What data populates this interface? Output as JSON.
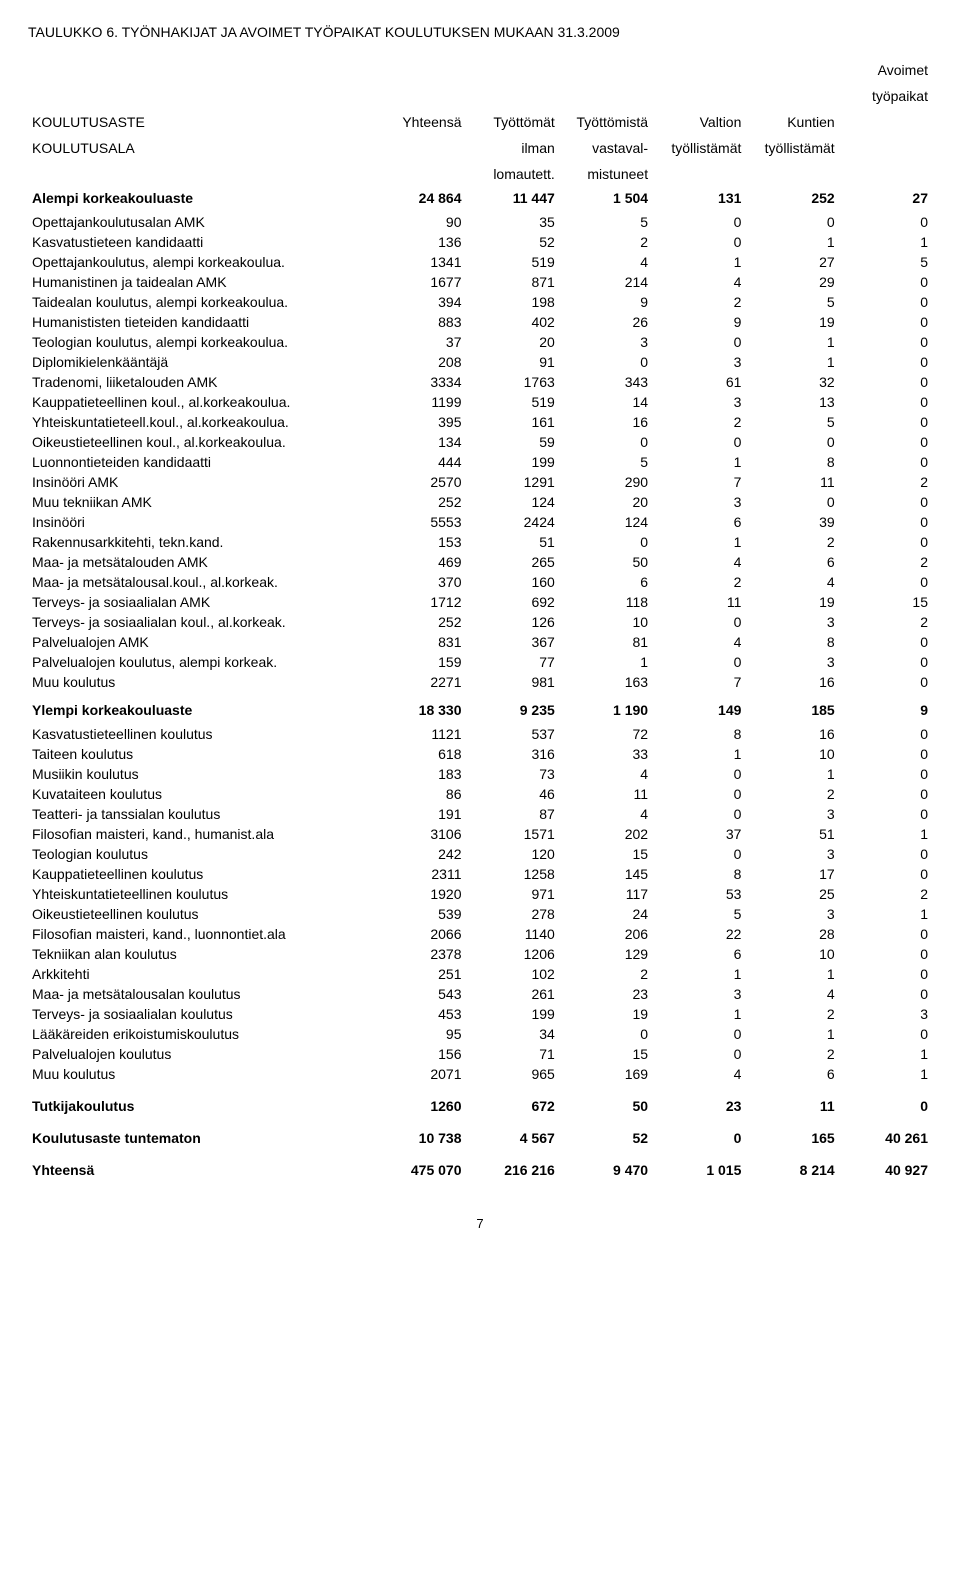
{
  "title": "TAULUKKO 6. TYÖNHAKIJAT JA AVOIMET TYÖPAIKAT KOULUTUKSEN MUKAAN 31.3.2009",
  "page_number": "7",
  "header": {
    "rowA": "KOULUTUSASTE",
    "rowB": "KOULUTUSALA",
    "c1a": "Yhteensä",
    "c1b": "",
    "c1c": "",
    "c2a": "Työttömät",
    "c2b": "ilman",
    "c2c": "lomautett.",
    "c3a": "Työttömistä",
    "c3b": "vastaval-",
    "c3c": "mistuneet",
    "c4a": "Valtion",
    "c4b": "työllistämät",
    "c4c": "",
    "c5a": "Kuntien",
    "c5b": "työllistämät",
    "c5c": "",
    "c6a": "Avoimet",
    "c6b": "työpaikat"
  },
  "sections": [
    {
      "label": "Alempi korkeakouluaste",
      "vals": [
        "24 864",
        "11 447",
        "1 504",
        "131",
        "252",
        "27"
      ],
      "rows": [
        {
          "label": "Opettajankoulutusalan AMK",
          "v": [
            "90",
            "35",
            "5",
            "0",
            "0",
            "0"
          ]
        },
        {
          "label": "Kasvatustieteen kandidaatti",
          "v": [
            "136",
            "52",
            "2",
            "0",
            "1",
            "1"
          ]
        },
        {
          "label": "Opettajankoulutus, alempi korkeakoulua.",
          "v": [
            "1341",
            "519",
            "4",
            "1",
            "27",
            "5"
          ]
        },
        {
          "label": "Humanistinen ja taidealan AMK",
          "v": [
            "1677",
            "871",
            "214",
            "4",
            "29",
            "0"
          ]
        },
        {
          "label": "Taidealan koulutus, alempi korkeakoulua.",
          "v": [
            "394",
            "198",
            "9",
            "2",
            "5",
            "0"
          ]
        },
        {
          "label": "Humanististen tieteiden kandidaatti",
          "v": [
            "883",
            "402",
            "26",
            "9",
            "19",
            "0"
          ]
        },
        {
          "label": "Teologian koulutus, alempi korkeakoulua.",
          "v": [
            "37",
            "20",
            "3",
            "0",
            "1",
            "0"
          ]
        },
        {
          "label": "Diplomikielenkääntäjä",
          "v": [
            "208",
            "91",
            "0",
            "3",
            "1",
            "0"
          ]
        },
        {
          "label": "Tradenomi, liiketalouden AMK",
          "v": [
            "3334",
            "1763",
            "343",
            "61",
            "32",
            "0"
          ]
        },
        {
          "label": "Kauppatieteellinen koul., al.korkeakoulua.",
          "v": [
            "1199",
            "519",
            "14",
            "3",
            "13",
            "0"
          ]
        },
        {
          "label": "Yhteiskuntatieteell.koul., al.korkeakoulua.",
          "v": [
            "395",
            "161",
            "16",
            "2",
            "5",
            "0"
          ]
        },
        {
          "label": "Oikeustieteellinen koul., al.korkeakoulua.",
          "v": [
            "134",
            "59",
            "0",
            "0",
            "0",
            "0"
          ]
        },
        {
          "label": "Luonnontieteiden kandidaatti",
          "v": [
            "444",
            "199",
            "5",
            "1",
            "8",
            "0"
          ]
        },
        {
          "label": "Insinööri AMK",
          "v": [
            "2570",
            "1291",
            "290",
            "7",
            "11",
            "2"
          ]
        },
        {
          "label": "Muu tekniikan AMK",
          "v": [
            "252",
            "124",
            "20",
            "3",
            "0",
            "0"
          ]
        },
        {
          "label": "Insinööri",
          "v": [
            "5553",
            "2424",
            "124",
            "6",
            "39",
            "0"
          ]
        },
        {
          "label": "Rakennusarkkitehti, tekn.kand.",
          "v": [
            "153",
            "51",
            "0",
            "1",
            "2",
            "0"
          ]
        },
        {
          "label": "Maa- ja metsätalouden AMK",
          "v": [
            "469",
            "265",
            "50",
            "4",
            "6",
            "2"
          ]
        },
        {
          "label": "Maa- ja metsätalousal.koul., al.korkeak.",
          "v": [
            "370",
            "160",
            "6",
            "2",
            "4",
            "0"
          ]
        },
        {
          "label": "Terveys- ja sosiaalialan AMK",
          "v": [
            "1712",
            "692",
            "118",
            "11",
            "19",
            "15"
          ]
        },
        {
          "label": "Terveys- ja sosiaalialan koul., al.korkeak.",
          "v": [
            "252",
            "126",
            "10",
            "0",
            "3",
            "2"
          ]
        },
        {
          "label": "Palvelualojen AMK",
          "v": [
            "831",
            "367",
            "81",
            "4",
            "8",
            "0"
          ]
        },
        {
          "label": "Palvelualojen koulutus, alempi korkeak.",
          "v": [
            "159",
            "77",
            "1",
            "0",
            "3",
            "0"
          ]
        },
        {
          "label": "Muu koulutus",
          "v": [
            "2271",
            "981",
            "163",
            "7",
            "16",
            "0"
          ]
        }
      ]
    },
    {
      "label": "Ylempi korkeakouluaste",
      "vals": [
        "18 330",
        "9 235",
        "1 190",
        "149",
        "185",
        "9"
      ],
      "rows": [
        {
          "label": "Kasvatustieteellinen koulutus",
          "v": [
            "1121",
            "537",
            "72",
            "8",
            "16",
            "0"
          ]
        },
        {
          "label": "Taiteen koulutus",
          "v": [
            "618",
            "316",
            "33",
            "1",
            "10",
            "0"
          ]
        },
        {
          "label": "Musiikin koulutus",
          "v": [
            "183",
            "73",
            "4",
            "0",
            "1",
            "0"
          ]
        },
        {
          "label": "Kuvataiteen koulutus",
          "v": [
            "86",
            "46",
            "11",
            "0",
            "2",
            "0"
          ]
        },
        {
          "label": "Teatteri- ja tanssialan koulutus",
          "v": [
            "191",
            "87",
            "4",
            "0",
            "3",
            "0"
          ]
        },
        {
          "label": "Filosofian maisteri, kand., humanist.ala",
          "v": [
            "3106",
            "1571",
            "202",
            "37",
            "51",
            "1"
          ]
        },
        {
          "label": "Teologian koulutus",
          "v": [
            "242",
            "120",
            "15",
            "0",
            "3",
            "0"
          ]
        },
        {
          "label": "Kauppatieteellinen koulutus",
          "v": [
            "2311",
            "1258",
            "145",
            "8",
            "17",
            "0"
          ]
        },
        {
          "label": "Yhteiskuntatieteellinen koulutus",
          "v": [
            "1920",
            "971",
            "117",
            "53",
            "25",
            "2"
          ]
        },
        {
          "label": "Oikeustieteellinen koulutus",
          "v": [
            "539",
            "278",
            "24",
            "5",
            "3",
            "1"
          ]
        },
        {
          "label": "Filosofian maisteri, kand., luonnontiet.ala",
          "v": [
            "2066",
            "1140",
            "206",
            "22",
            "28",
            "0"
          ]
        },
        {
          "label": "Tekniikan alan koulutus",
          "v": [
            "2378",
            "1206",
            "129",
            "6",
            "10",
            "0"
          ]
        },
        {
          "label": "Arkkitehti",
          "v": [
            "251",
            "102",
            "2",
            "1",
            "1",
            "0"
          ]
        },
        {
          "label": "Maa- ja metsätalousalan koulutus",
          "v": [
            "543",
            "261",
            "23",
            "3",
            "4",
            "0"
          ]
        },
        {
          "label": "Terveys- ja sosiaalialan koulutus",
          "v": [
            "453",
            "199",
            "19",
            "1",
            "2",
            "3"
          ]
        },
        {
          "label": "Lääkäreiden erikoistumiskoulutus",
          "v": [
            "95",
            "34",
            "0",
            "0",
            "1",
            "0"
          ]
        },
        {
          "label": "Palvelualojen koulutus",
          "v": [
            "156",
            "71",
            "15",
            "0",
            "2",
            "1"
          ]
        },
        {
          "label": "Muu koulutus",
          "v": [
            "2071",
            "965",
            "169",
            "4",
            "6",
            "1"
          ]
        }
      ]
    }
  ],
  "footer_sections": [
    {
      "label": "Tutkijakoulutus",
      "vals": [
        "1260",
        "672",
        "50",
        "23",
        "11",
        "0"
      ]
    },
    {
      "label": "Koulutusaste tuntematon",
      "vals": [
        "10 738",
        "4 567",
        "52",
        "0",
        "165",
        "40 261"
      ]
    },
    {
      "label": "Yhteensä",
      "vals": [
        "475 070",
        "216 216",
        "9 470",
        "1 015",
        "8 214",
        "40 927"
      ]
    }
  ]
}
